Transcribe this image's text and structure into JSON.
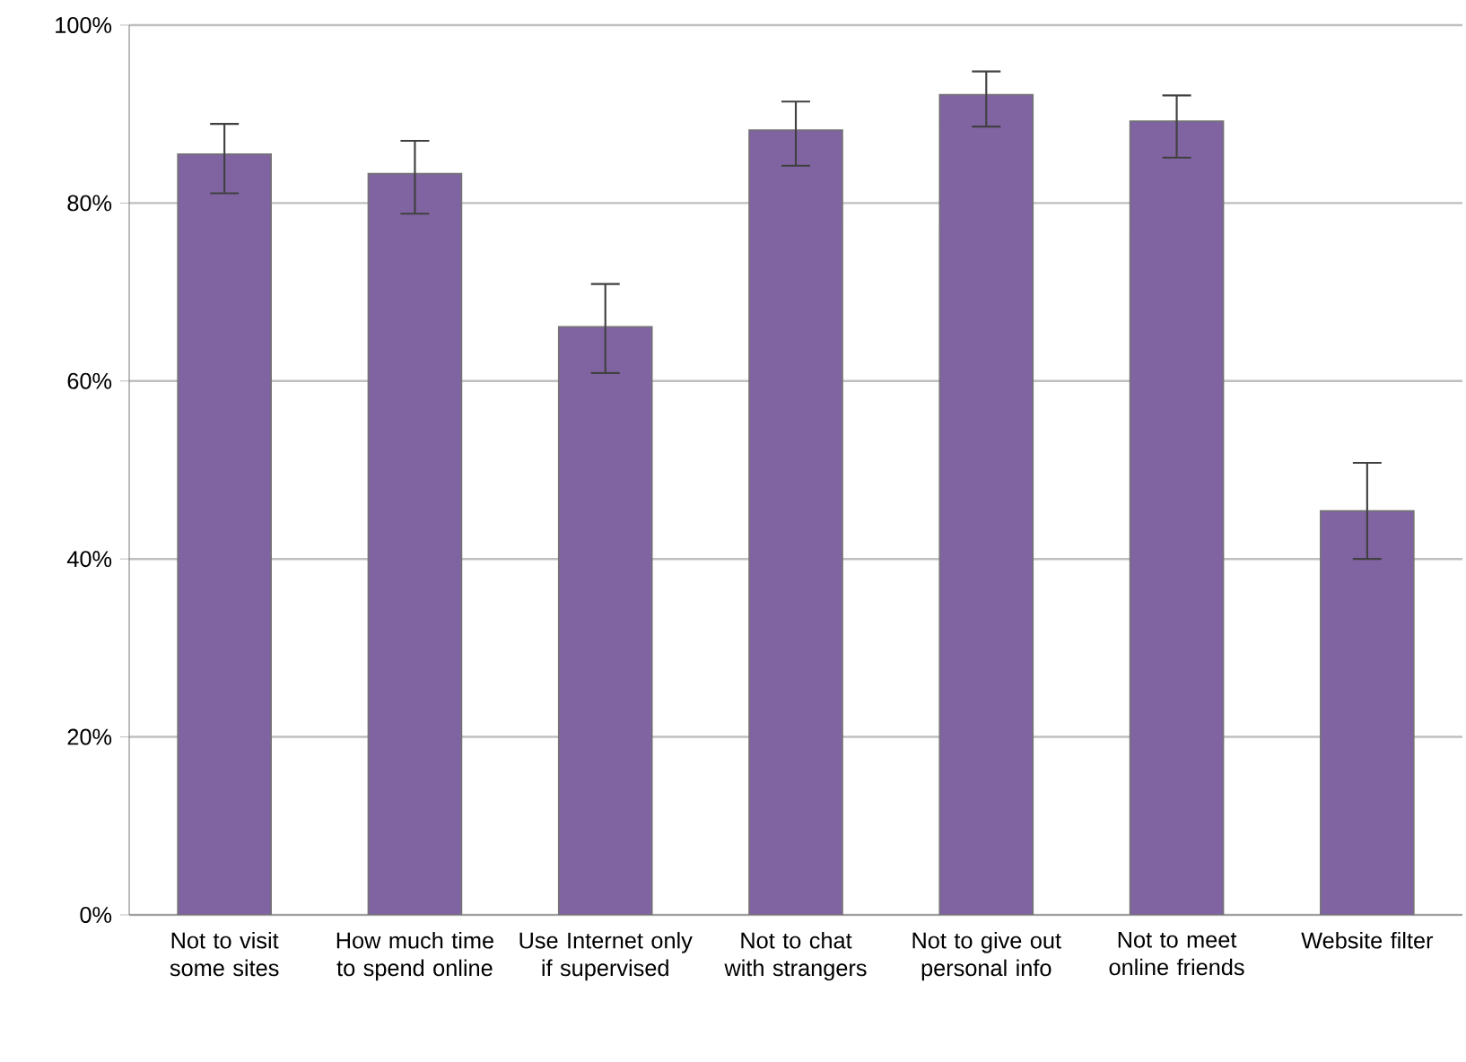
{
  "chart_data": {
    "type": "bar",
    "categories": [
      "Not to visit some sites",
      "How much time to spend online",
      "Use Internet only if supervised",
      "Not to chat with strangers",
      "Not to give out personal info",
      "Not to meet online friends",
      "Website filter"
    ],
    "values": [
      85.5,
      83.3,
      66.1,
      88.2,
      92.2,
      89.2,
      45.4
    ],
    "errors": [
      [
        81.1,
        88.9
      ],
      [
        78.8,
        87.0
      ],
      [
        60.9,
        70.9
      ],
      [
        84.2,
        91.4
      ],
      [
        88.6,
        94.8
      ],
      [
        85.1,
        92.1
      ],
      [
        40.0,
        50.8
      ]
    ],
    "color": "#8064a2",
    "ylim": [
      0,
      100
    ],
    "yticks": [
      {
        "value": 0,
        "label": "0%"
      },
      {
        "value": 20,
        "label": "20%"
      },
      {
        "value": 40,
        "label": "40%"
      },
      {
        "value": 60,
        "label": "60%"
      },
      {
        "value": 80,
        "label": "80%"
      },
      {
        "value": 100,
        "label": "100%"
      }
    ],
    "grid": "y"
  }
}
